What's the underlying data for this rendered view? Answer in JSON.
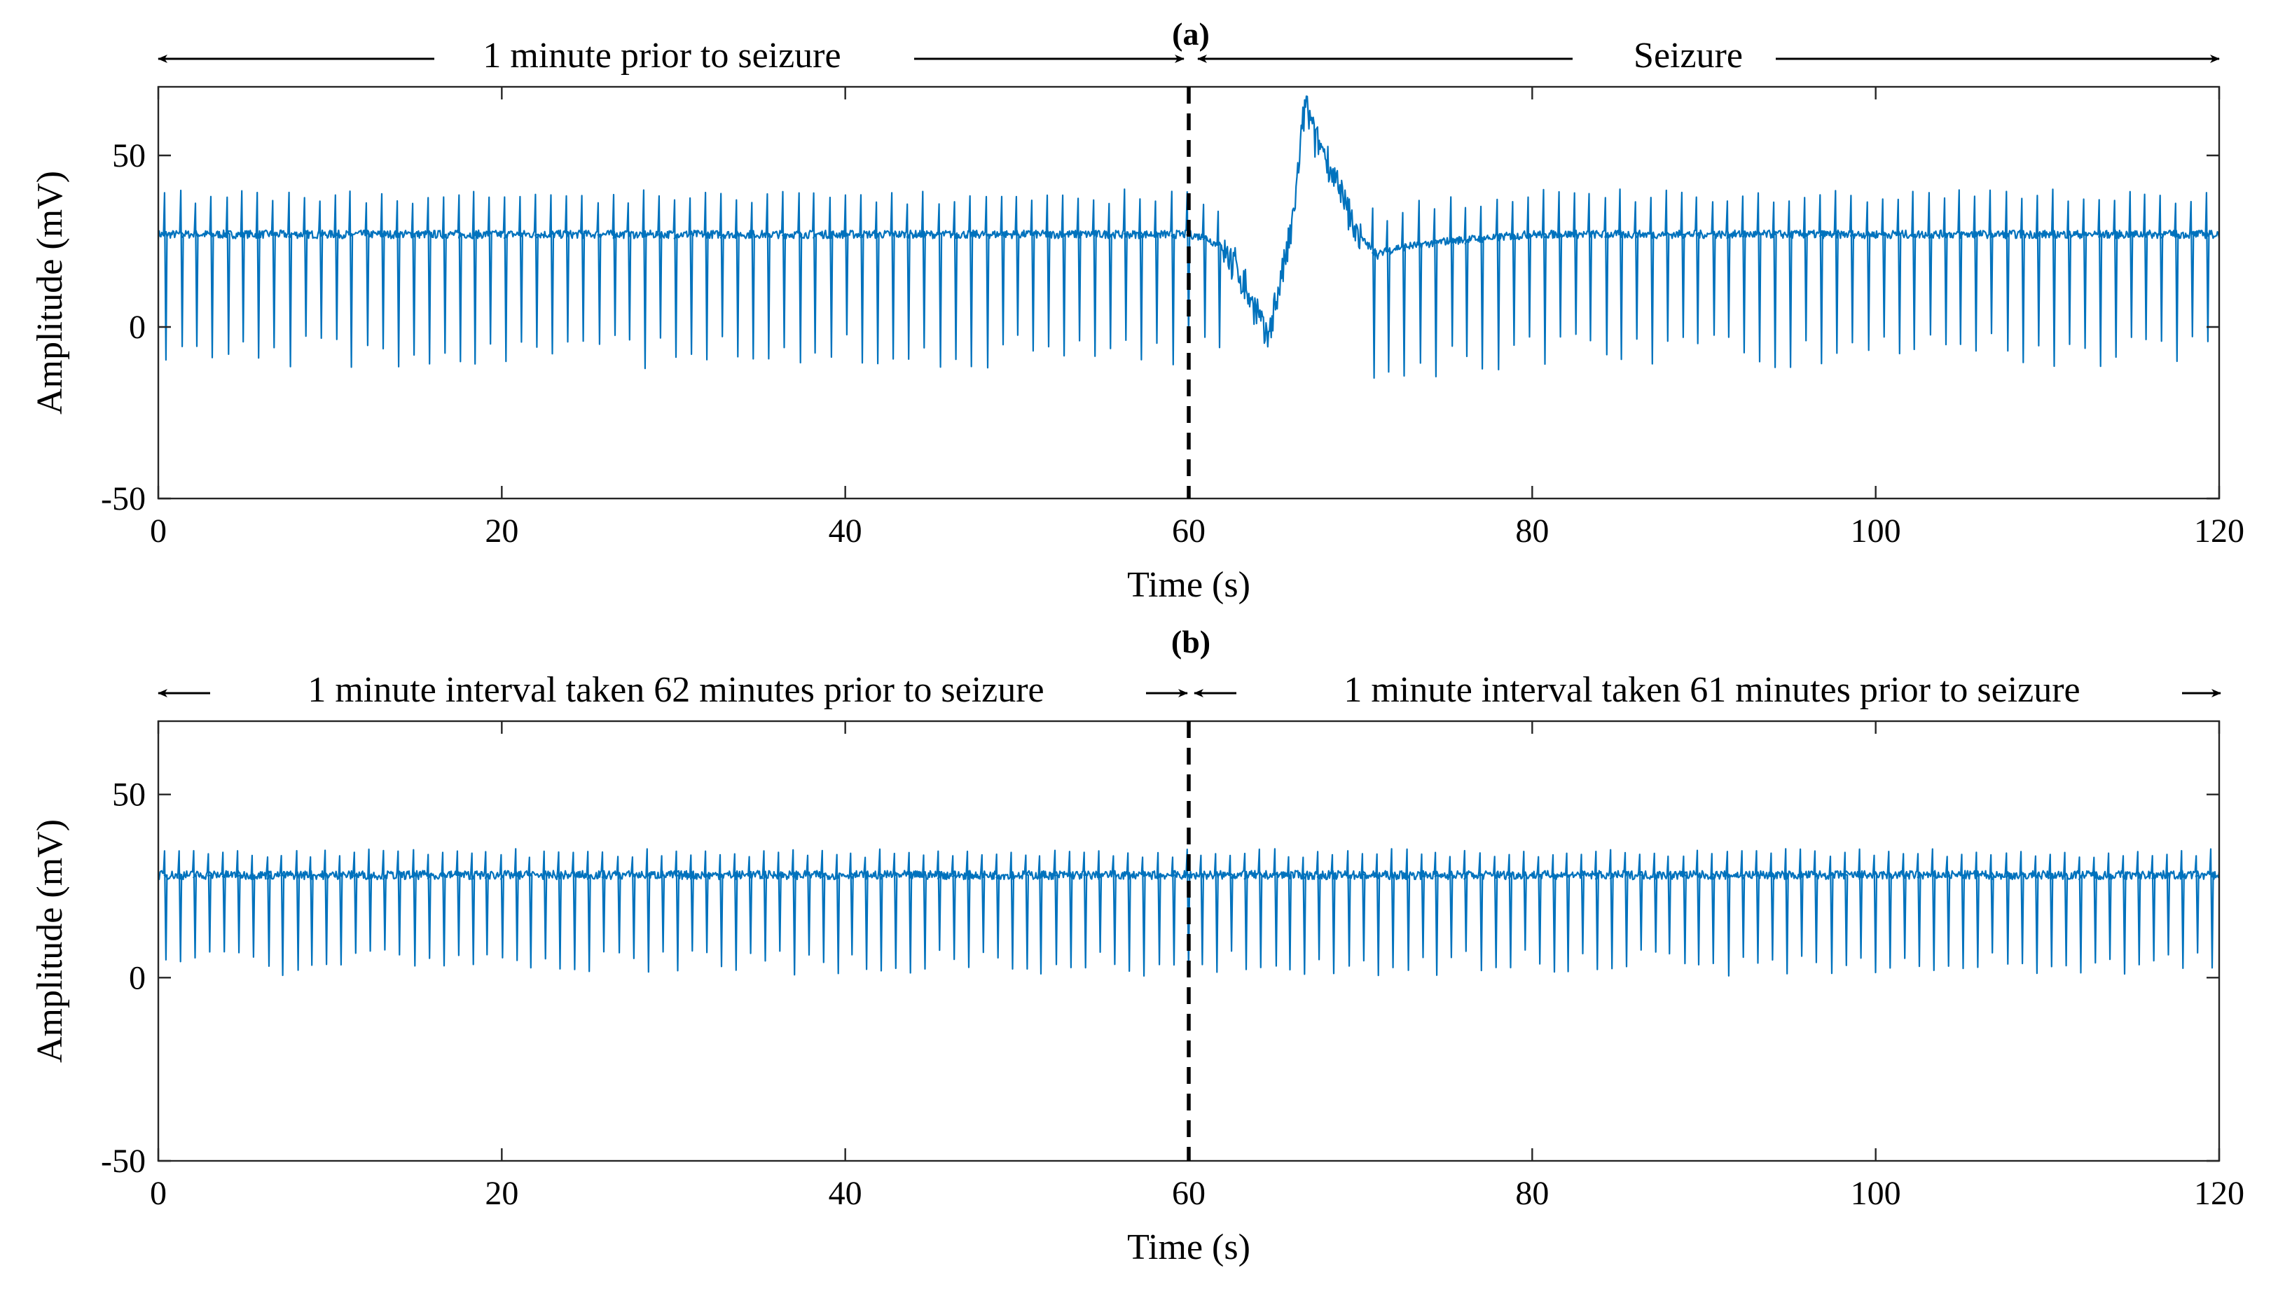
{
  "colors": {
    "signal": "#0072BD",
    "axis": "#262626",
    "divider": "#000000"
  },
  "chart_data": [
    {
      "panel": "(a)",
      "type": "line",
      "xlabel": "Time (s)",
      "ylabel": "Amplitude (mV)",
      "xlim": [
        0,
        120
      ],
      "ylim": [
        -50,
        70
      ],
      "xticks": [
        0,
        20,
        40,
        60,
        80,
        100,
        120
      ],
      "yticks": [
        -50,
        0,
        50
      ],
      "grid": false,
      "divider_x": 60,
      "divider_style": "dashed",
      "arrow_labels": {
        "left": "1 minute prior to seizure",
        "right": "Seizure"
      },
      "series": [
        {
          "baseline": [
            [
              0,
              27
            ],
            [
              60,
              27
            ],
            [
              61,
              26
            ],
            [
              62,
              23
            ],
            [
              63,
              15
            ],
            [
              64,
              4
            ],
            [
              64.5,
              -4
            ],
            [
              65.2,
              10
            ],
            [
              66,
              28
            ],
            [
              66.8,
              66
            ],
            [
              67.3,
              55
            ],
            [
              68,
              50
            ],
            [
              69,
              36
            ],
            [
              70,
              26
            ],
            [
              71,
              21
            ],
            [
              72,
              23
            ],
            [
              75,
              25
            ],
            [
              80,
              27
            ],
            [
              100,
              27
            ],
            [
              120,
              27
            ]
          ],
          "beat_period_s": 0.9,
          "peak_offset": 11,
          "trough_offset": -34,
          "seizure_window_s": [
            62,
            70
          ]
        }
      ]
    },
    {
      "panel": "(b)",
      "type": "line",
      "xlabel": "Time (s)",
      "ylabel": "Amplitude (mV)",
      "xlim": [
        0,
        120
      ],
      "ylim": [
        -50,
        70
      ],
      "xticks": [
        0,
        20,
        40,
        60,
        80,
        100,
        120
      ],
      "yticks": [
        -50,
        0,
        50
      ],
      "grid": false,
      "divider_x": 60,
      "divider_style": "dashed",
      "arrow_labels": {
        "left": "1 minute interval taken 62 minutes prior to seizure",
        "right": "1 minute interval taken 61 minutes prior to seizure"
      },
      "series": [
        {
          "baseline": [
            [
              0,
              28
            ],
            [
              120,
              28
            ]
          ],
          "beat_period_s": 0.85,
          "peak_offset": 6,
          "trough_offset": -24,
          "seizure_window_s": null
        }
      ]
    }
  ]
}
